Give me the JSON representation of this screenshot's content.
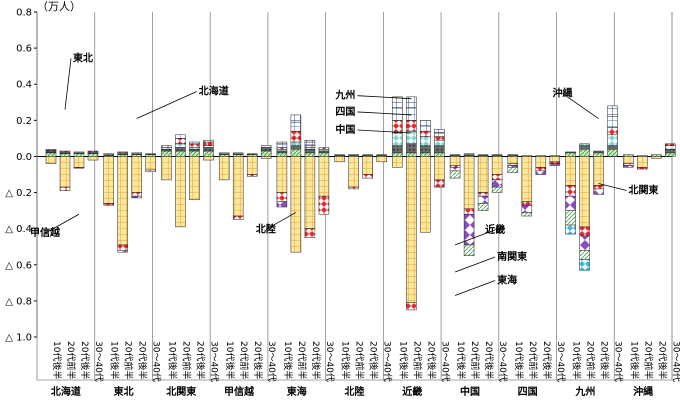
{
  "chart_data": {
    "type": "bar",
    "unit_label": "（万人）",
    "ylim": [
      -1.0,
      0.8
    ],
    "yticks": [
      {
        "value": 0.8,
        "label": "0.8"
      },
      {
        "value": 0.6,
        "label": "0.6"
      },
      {
        "value": 0.4,
        "label": "0.4"
      },
      {
        "value": 0.2,
        "label": "0.2"
      },
      {
        "value": 0.0,
        "label": "0.0"
      },
      {
        "value": -0.2,
        "label": "△ 0.2"
      },
      {
        "value": -0.4,
        "label": "△ 0.4"
      },
      {
        "value": -0.6,
        "label": "△ 0.6"
      },
      {
        "value": -0.8,
        "label": "△ 0.8"
      },
      {
        "value": -1.0,
        "label": "△ 1.0"
      }
    ],
    "age_groups": [
      "10代後半",
      "20代前半",
      "20代後半",
      "30～40代"
    ],
    "regions": [
      "北海道",
      "東北",
      "北関東",
      "甲信越",
      "東海",
      "北陸",
      "近畿",
      "中国",
      "四国",
      "九州",
      "沖縄"
    ],
    "series_names": [
      "北海道",
      "東北",
      "北関東",
      "甲信越",
      "南関東",
      "東海",
      "北陸",
      "近畿",
      "中国",
      "四国",
      "九州",
      "沖縄"
    ],
    "bars": [
      [
        {
          "p": [
            0.02,
            0.005,
            0.005,
            0.005,
            0.005
          ],
          "n": [
            -0.04
          ]
        },
        {
          "p": [
            0.015,
            0.005,
            0.005,
            0.005
          ],
          "n": [
            -0.17,
            -0.02
          ]
        },
        {
          "p": [
            0.015,
            0.005,
            0.005
          ],
          "n": [
            -0.06,
            -0.005
          ]
        },
        {
          "p": [
            0.015,
            0.005,
            0.005,
            0.005
          ],
          "n": [
            -0.02
          ]
        }
      ],
      [
        {
          "p": [
            0.005,
            0.005,
            0.005
          ],
          "n": [
            -0.26,
            -0.01
          ]
        },
        {
          "p": [
            0.01,
            0.005,
            0.005,
            0.005
          ],
          "n": [
            -0.49,
            -0.03,
            -0.01
          ]
        },
        {
          "p": [
            0.01,
            0.005,
            0.005
          ],
          "n": [
            -0.2,
            -0.02,
            -0.01
          ]
        },
        {
          "p": [
            0.01,
            0.005
          ],
          "n": [
            -0.075,
            -0.01
          ]
        }
      ],
      [
        {
          "p": [
            0.03,
            0.01,
            0.01,
            0.01
          ],
          "n": [
            -0.13
          ]
        },
        {
          "p": [
            0.03,
            0.02,
            0.02,
            0.03,
            0.02
          ],
          "n": [
            -0.39
          ]
        },
        {
          "p": [
            0.03,
            0.01,
            0.01,
            0.02,
            0.01
          ],
          "n": [
            -0.24
          ]
        },
        {
          "p": [
            0.03,
            0.02,
            0.01,
            0.02,
            0.01
          ],
          "n": [
            -0.02
          ]
        }
      ],
      [
        {
          "p": [
            0.01,
            0.005,
            0.005
          ],
          "n": [
            -0.13
          ]
        },
        {
          "p": [
            0.01,
            0.005,
            0.005
          ],
          "n": [
            -0.33,
            -0.02
          ]
        },
        {
          "p": [
            0.01,
            0.005
          ],
          "n": [
            -0.1,
            -0.01
          ]
        },
        {
          "p": [
            0.03,
            0.02,
            0.01
          ],
          "n": [
            -0.01
          ]
        }
      ],
      [
        {
          "p": [
            0.02,
            0.01,
            0.01,
            0.01,
            0.02,
            0.01
          ],
          "n": [
            -0.2,
            -0.05,
            -0.03
          ]
        },
        {
          "p": [
            0.04,
            0.02,
            0.02,
            0.06,
            0.05,
            0.04
          ],
          "n": [
            -0.53
          ]
        },
        {
          "p": [
            0.02,
            0.02,
            0.01,
            0.01,
            0.02,
            0.01
          ],
          "n": [
            -0.4,
            -0.05
          ]
        },
        {
          "p": [
            0.02,
            0.01,
            0.01,
            0.01
          ],
          "n": [
            -0.22,
            -0.1
          ]
        }
      ],
      [
        {
          "p": [
            0.005,
            0.005
          ],
          "n": [
            -0.03
          ]
        },
        {
          "p": [
            0.005,
            0.005
          ],
          "n": [
            -0.17,
            -0.01
          ]
        },
        {
          "p": [
            0.005,
            0.005
          ],
          "n": [
            -0.1,
            -0.02
          ]
        },
        {
          "p": [
            0.005,
            0.005
          ],
          "n": [
            -0.03
          ]
        }
      ],
      [
        {
          "p": [
            0.02,
            0.04,
            0.07,
            0.07,
            0.07,
            0.06
          ],
          "n": [
            -0.06
          ]
        },
        {
          "p": [
            0.02,
            0.05,
            0.07,
            0.06,
            0.07,
            0.06
          ],
          "n": [
            -0.81,
            -0.04
          ]
        },
        {
          "p": [
            0.02,
            0.04,
            0.05,
            0.03,
            0.03,
            0.03
          ],
          "n": [
            -0.42
          ]
        },
        {
          "p": [
            0.02,
            0.04,
            0.03,
            0.02,
            0.02,
            0.02
          ],
          "n": [
            -0.13,
            -0.04
          ]
        }
      ],
      [
        {
          "p": [
            0.005,
            0.005
          ],
          "n": [
            -0.05,
            -0.01,
            -0.02,
            -0.04
          ]
        },
        {
          "p": [
            0.005,
            0.005,
            0.005
          ],
          "n": [
            -0.29,
            -0.03,
            -0.17,
            -0.06
          ]
        },
        {
          "p": [
            0.005,
            0.005
          ],
          "n": [
            -0.2,
            -0.02,
            -0.04,
            -0.04
          ]
        },
        {
          "p": [
            0.005,
            0.005
          ],
          "n": [
            -0.1,
            -0.03,
            -0.04,
            -0.03
          ]
        }
      ],
      [
        {
          "p": [
            0.005,
            0.005
          ],
          "n": [
            -0.04,
            -0.01,
            -0.01,
            -0.03
          ]
        },
        {
          "p": [
            0.005
          ],
          "n": [
            -0.25,
            -0.02,
            -0.04,
            -0.02
          ]
        },
        {
          "p": [
            0.005
          ],
          "n": [
            -0.06,
            -0.02,
            -0.02
          ]
        },
        {
          "p": [
            0.005
          ],
          "n": [
            -0.03,
            -0.01,
            -0.01
          ]
        }
      ],
      [
        {
          "p": [
            0.02,
            0.005
          ],
          "n": [
            -0.16,
            -0.06,
            -0.08,
            -0.08,
            -0.05
          ]
        },
        {
          "p": [
            0.04,
            0.02,
            0.01
          ],
          "n": [
            -0.39,
            -0.05,
            -0.08,
            -0.05,
            -0.06
          ]
        },
        {
          "p": [
            0.02,
            0.01
          ],
          "n": [
            -0.16,
            -0.02,
            -0.03
          ]
        },
        {
          "p": [
            0.04,
            0.02,
            0.06,
            0.04,
            0.06,
            0.06
          ],
          "n": []
        }
      ],
      [
        {
          "p": [
            0.01
          ],
          "n": [
            -0.04,
            -0.01,
            -0.01
          ]
        },
        {
          "p": [
            0.005
          ],
          "n": [
            -0.06,
            -0.01
          ]
        },
        {
          "p": [
            0.01
          ],
          "n": [
            -0.01
          ]
        },
        {
          "p": [
            0.02,
            0.02,
            0.02,
            0.01
          ],
          "n": []
        }
      ]
    ],
    "annotations": [
      {
        "label": "東北",
        "cat": 1,
        "value": 0.26
      },
      {
        "label": "北海道",
        "cat": 6,
        "value": 0.21
      },
      {
        "label": "甲信越",
        "cat": 2,
        "value": -0.32
      },
      {
        "label": "北陸",
        "cat": 17,
        "value": -0.31
      },
      {
        "label": "九州",
        "cat": 25,
        "value": 0.32
      },
      {
        "label": "四国",
        "cat": 25,
        "value": 0.23
      },
      {
        "label": "中国",
        "cat": 25,
        "value": 0.13
      },
      {
        "label": "近畿",
        "cat": 28,
        "value": -0.49
      },
      {
        "label": "南関東",
        "cat": 28,
        "value": -0.64
      },
      {
        "label": "東海",
        "cat": 28,
        "value": -0.77
      },
      {
        "label": "沖縄",
        "cat": 38,
        "value": 0.21
      },
      {
        "label": "北関東",
        "cat": 38,
        "value": -0.15
      }
    ]
  }
}
